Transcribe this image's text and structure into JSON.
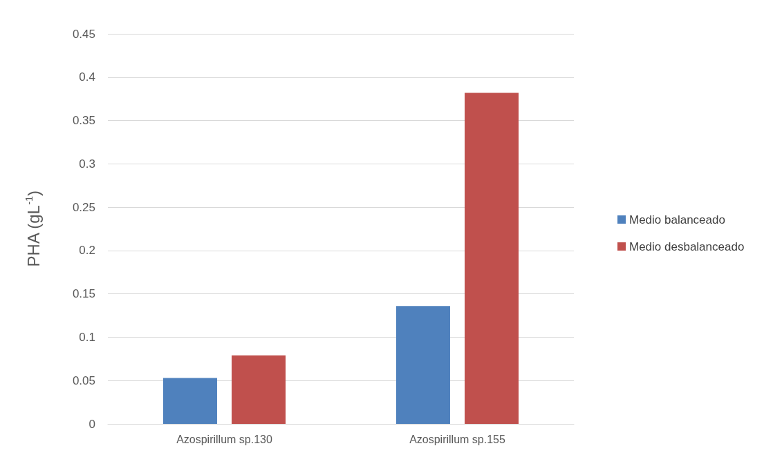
{
  "chart_data": {
    "type": "bar",
    "ylabel": "PHA (gL$^{-1}$)",
    "categories": [
      "Azospirillum sp.130",
      "Azospirillum sp.155"
    ],
    "series": [
      {
        "name": "Medio balanceado",
        "color": "#4f81bd",
        "values": [
          0.053,
          0.136
        ]
      },
      {
        "name": "Medio desbalanceado",
        "color": "#c0504d",
        "values": [
          0.079,
          0.382
        ]
      }
    ],
    "ylim": [
      0,
      0.45
    ],
    "yticks": [
      0,
      0.05,
      0.1,
      0.15,
      0.2,
      0.25,
      0.3,
      0.35,
      0.4,
      0.45
    ],
    "grid": "y",
    "legend": "right"
  }
}
